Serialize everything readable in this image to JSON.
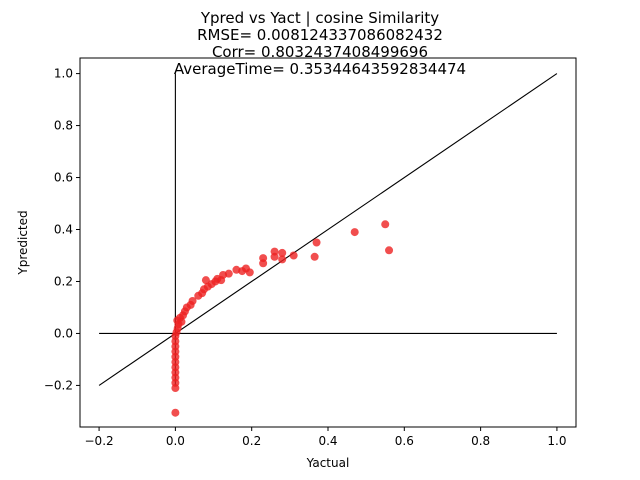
{
  "chart_data": {
    "type": "scatter",
    "title_lines": [
      "Ypred vs Yact | cosine Similarity",
      "RMSE= 0.008124337086082432",
      "Corr= 0.8032437408499696",
      "AverageTime= 0.35344643592834474"
    ],
    "xlabel": "Yactual",
    "ylabel": "Ypredicted",
    "xlim": [
      -0.25,
      1.05
    ],
    "ylim": [
      -0.36,
      1.06
    ],
    "xticks": [
      -0.2,
      0.0,
      0.2,
      0.4,
      0.6,
      0.8,
      1.0
    ],
    "xtick_labels": [
      "−0.2",
      "0.0",
      "0.2",
      "0.4",
      "0.6",
      "0.8",
      "1.0"
    ],
    "yticks": [
      -0.2,
      0.0,
      0.2,
      0.4,
      0.6,
      0.8,
      1.0
    ],
    "ytick_labels": [
      "−0.2",
      "0.0",
      "0.2",
      "0.4",
      "0.6",
      "0.8",
      "1.0"
    ],
    "grid": false,
    "point_color": "#ee2222",
    "line_color": "#000000",
    "reference_lines": [
      {
        "x": [
          -0.2,
          1.0
        ],
        "y": [
          -0.2,
          1.0
        ]
      },
      {
        "x": [
          -0.2,
          1.0
        ],
        "y": [
          0.0,
          0.0
        ]
      },
      {
        "x": [
          0.0,
          0.0
        ],
        "y": [
          -0.2,
          1.0
        ]
      }
    ],
    "points": [
      {
        "x": 0.0,
        "y": -0.305
      },
      {
        "x": 0.0,
        "y": -0.21
      },
      {
        "x": 0.0,
        "y": -0.19
      },
      {
        "x": 0.0,
        "y": -0.17
      },
      {
        "x": 0.0,
        "y": -0.15
      },
      {
        "x": 0.0,
        "y": -0.13
      },
      {
        "x": 0.0,
        "y": -0.11
      },
      {
        "x": 0.0,
        "y": -0.09
      },
      {
        "x": 0.0,
        "y": -0.07
      },
      {
        "x": 0.0,
        "y": -0.05
      },
      {
        "x": 0.0,
        "y": -0.03
      },
      {
        "x": 0.0,
        "y": -0.01
      },
      {
        "x": 0.003,
        "y": 0.005
      },
      {
        "x": 0.006,
        "y": 0.02
      },
      {
        "x": 0.008,
        "y": 0.035
      },
      {
        "x": 0.005,
        "y": 0.05
      },
      {
        "x": 0.012,
        "y": 0.06
      },
      {
        "x": 0.016,
        "y": 0.045
      },
      {
        "x": 0.02,
        "y": 0.07
      },
      {
        "x": 0.025,
        "y": 0.085
      },
      {
        "x": 0.03,
        "y": 0.1
      },
      {
        "x": 0.04,
        "y": 0.11
      },
      {
        "x": 0.045,
        "y": 0.125
      },
      {
        "x": 0.06,
        "y": 0.145
      },
      {
        "x": 0.07,
        "y": 0.155
      },
      {
        "x": 0.075,
        "y": 0.17
      },
      {
        "x": 0.085,
        "y": 0.18
      },
      {
        "x": 0.08,
        "y": 0.205
      },
      {
        "x": 0.095,
        "y": 0.19
      },
      {
        "x": 0.105,
        "y": 0.2
      },
      {
        "x": 0.11,
        "y": 0.21
      },
      {
        "x": 0.12,
        "y": 0.205
      },
      {
        "x": 0.125,
        "y": 0.225
      },
      {
        "x": 0.14,
        "y": 0.23
      },
      {
        "x": 0.16,
        "y": 0.245
      },
      {
        "x": 0.175,
        "y": 0.24
      },
      {
        "x": 0.185,
        "y": 0.25
      },
      {
        "x": 0.195,
        "y": 0.235
      },
      {
        "x": 0.23,
        "y": 0.27
      },
      {
        "x": 0.23,
        "y": 0.29
      },
      {
        "x": 0.26,
        "y": 0.295
      },
      {
        "x": 0.26,
        "y": 0.315
      },
      {
        "x": 0.28,
        "y": 0.285
      },
      {
        "x": 0.28,
        "y": 0.31
      },
      {
        "x": 0.31,
        "y": 0.3
      },
      {
        "x": 0.365,
        "y": 0.295
      },
      {
        "x": 0.37,
        "y": 0.35
      },
      {
        "x": 0.47,
        "y": 0.39
      },
      {
        "x": 0.55,
        "y": 0.42
      },
      {
        "x": 0.56,
        "y": 0.32
      }
    ]
  }
}
